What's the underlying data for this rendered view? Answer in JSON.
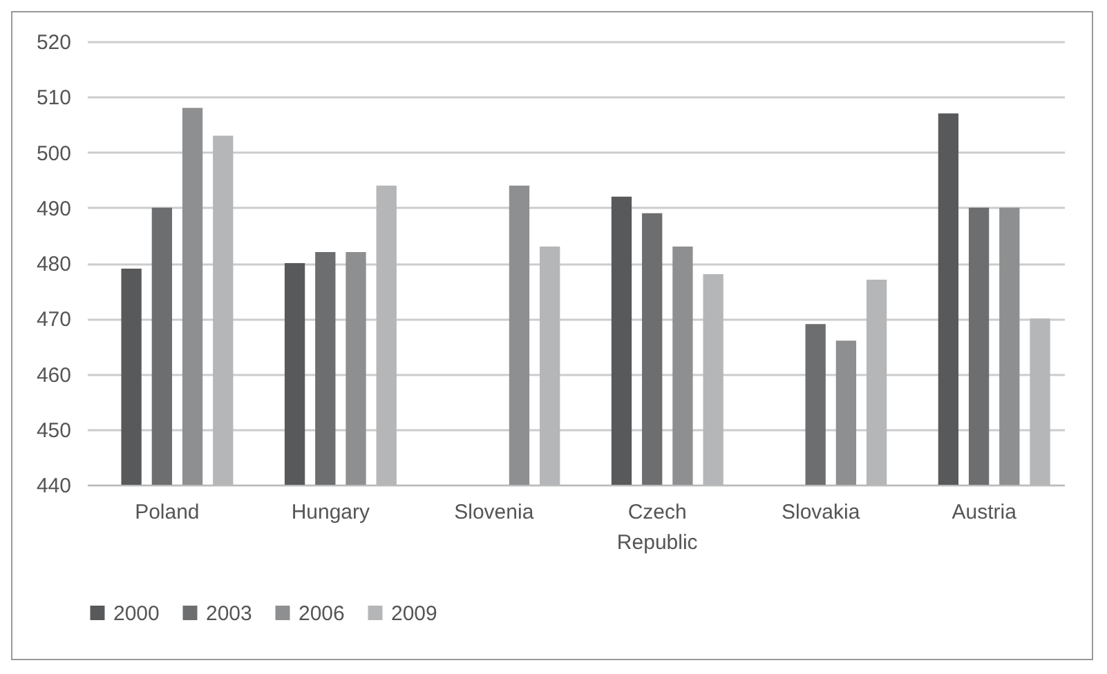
{
  "chart_data": {
    "type": "bar",
    "categories": [
      "Poland",
      "Hungary",
      "Slovenia",
      "Czech Republic",
      "Slovakia",
      "Austria"
    ],
    "series": [
      {
        "name": "2000",
        "color": "#58595b",
        "values": [
          479,
          480,
          null,
          492,
          null,
          507
        ]
      },
      {
        "name": "2003",
        "color": "#6d6e70",
        "values": [
          490,
          482,
          null,
          489,
          469,
          490
        ]
      },
      {
        "name": "2006",
        "color": "#8e8f91",
        "values": [
          508,
          482,
          494,
          483,
          466,
          490
        ]
      },
      {
        "name": "2009",
        "color": "#b5b6b8",
        "values": [
          503,
          494,
          483,
          478,
          477,
          470
        ]
      }
    ],
    "ylim": [
      440,
      520
    ],
    "yticks": [
      440,
      450,
      460,
      470,
      480,
      490,
      500,
      510,
      520
    ],
    "grid": "y",
    "legend": "bottom"
  }
}
